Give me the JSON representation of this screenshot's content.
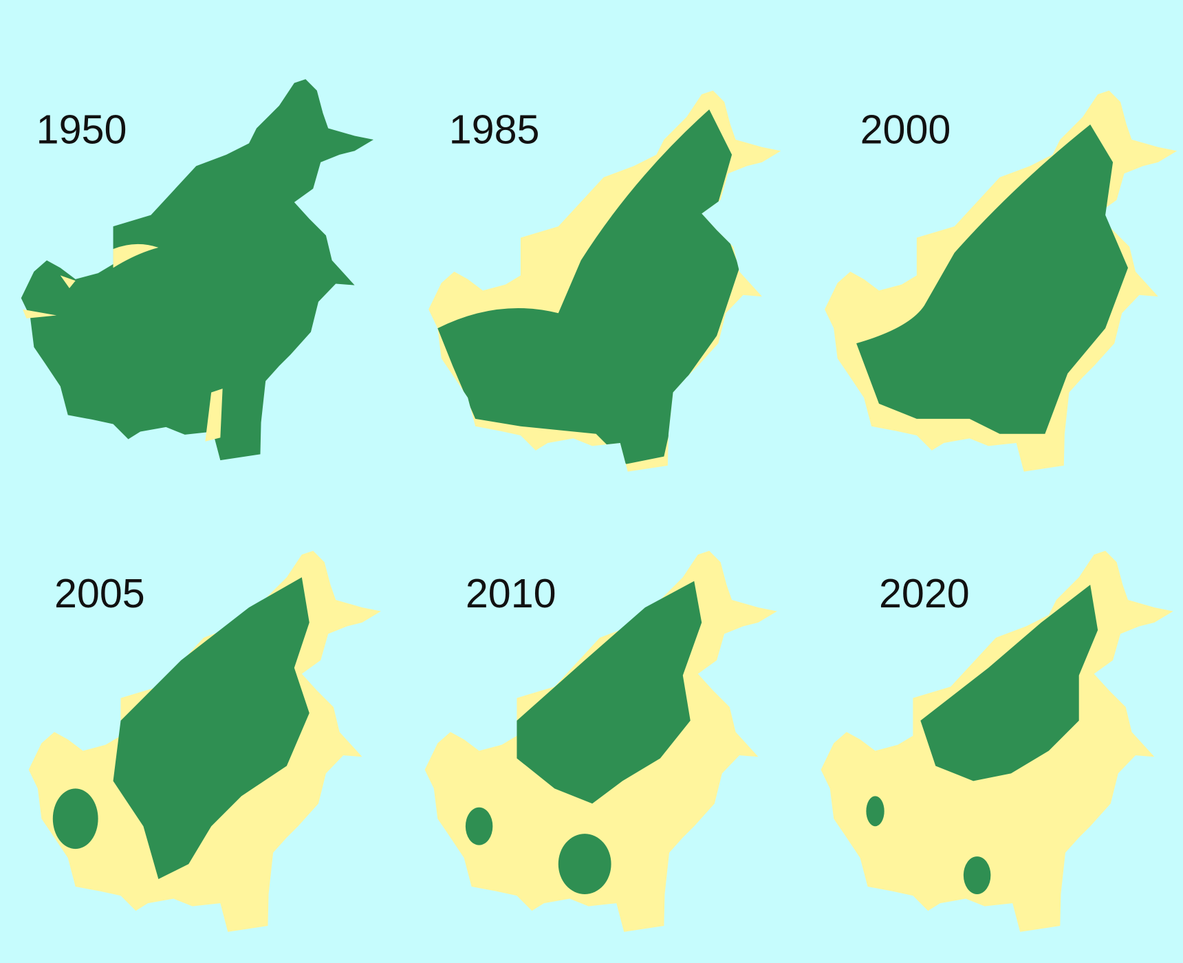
{
  "colors": {
    "background": "#c6fcfd",
    "forest": "#2f8f52",
    "cleared": "#fff59d"
  },
  "panels": [
    {
      "year": "1950"
    },
    {
      "year": "1985"
    },
    {
      "year": "2000"
    },
    {
      "year": "2005"
    },
    {
      "year": "2010"
    },
    {
      "year": "2020"
    }
  ]
}
